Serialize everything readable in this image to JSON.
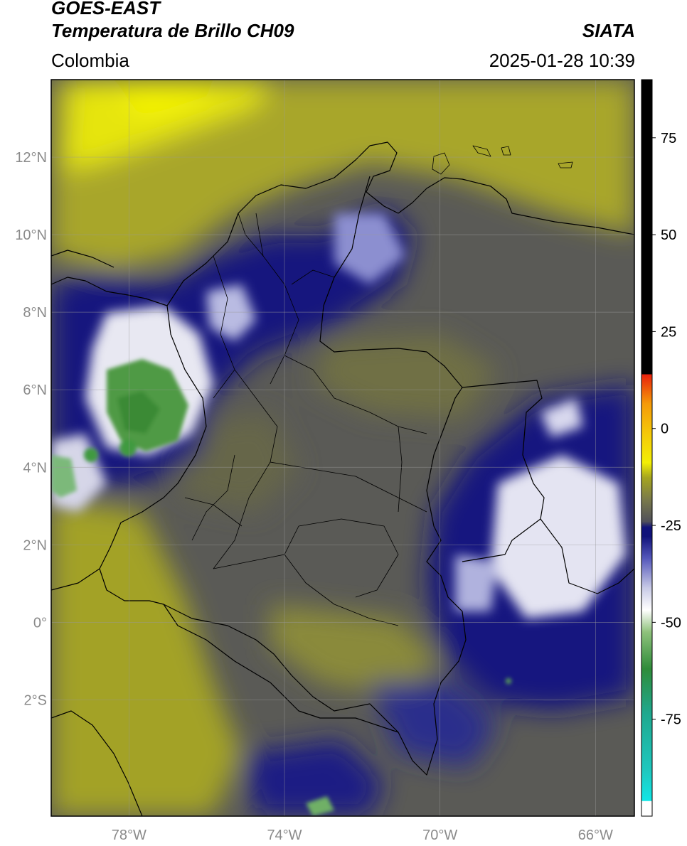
{
  "header": {
    "satellite": "GOES-EAST",
    "product": "Temperatura de Brillo CH09",
    "agency": "SIATA",
    "region": "Colombia",
    "timestamp": "2025-01-28 10:39"
  },
  "map": {
    "lon_range": [
      -80,
      -65
    ],
    "lat_range": [
      -5,
      14
    ],
    "lat_ticks": [
      {
        "value": 12,
        "label": "12°N"
      },
      {
        "value": 10,
        "label": "10°N"
      },
      {
        "value": 8,
        "label": "8°N"
      },
      {
        "value": 6,
        "label": "6°N"
      },
      {
        "value": 4,
        "label": "4°N"
      },
      {
        "value": 2,
        "label": "2°N"
      },
      {
        "value": 0,
        "label": "0°"
      },
      {
        "value": -2,
        "label": "2°S"
      }
    ],
    "lon_ticks": [
      {
        "value": -78,
        "label": "78°W"
      },
      {
        "value": -74,
        "label": "74°W"
      },
      {
        "value": -70,
        "label": "70°W"
      },
      {
        "value": -66,
        "label": "66°W"
      }
    ],
    "grid": true
  },
  "colorbar": {
    "range": [
      -100,
      90
    ],
    "ticks": [
      {
        "value": 75,
        "label": "75"
      },
      {
        "value": 50,
        "label": "50"
      },
      {
        "value": 25,
        "label": "25"
      },
      {
        "value": 0,
        "label": "0"
      },
      {
        "value": -25,
        "label": "-25"
      },
      {
        "value": -50,
        "label": "-50"
      },
      {
        "value": -75,
        "label": "-75"
      }
    ],
    "colors": {
      "black": "#000000",
      "red": "#e8200c",
      "orange": "#f59a08",
      "yellow": "#f2ef05",
      "olive": "#a6a61f",
      "gray": "#50505a",
      "navy": "#10127a",
      "blue": "#3b3fae",
      "white": "#ffffff",
      "green": "#3a8f3a",
      "teal": "#1fa88e",
      "cyan": "#12e6e6"
    }
  }
}
